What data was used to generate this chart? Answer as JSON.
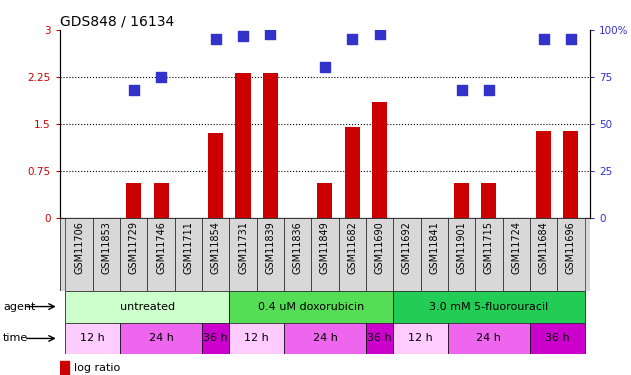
{
  "title": "GDS848 / 16134",
  "samples": [
    "GSM11706",
    "GSM11853",
    "GSM11729",
    "GSM11746",
    "GSM11711",
    "GSM11854",
    "GSM11731",
    "GSM11839",
    "GSM11836",
    "GSM11849",
    "GSM11682",
    "GSM11690",
    "GSM11692",
    "GSM11841",
    "GSM11901",
    "GSM11715",
    "GSM11724",
    "GSM11684",
    "GSM11696"
  ],
  "log_ratio": [
    0,
    0,
    0.55,
    0.55,
    0,
    1.35,
    2.32,
    2.32,
    0,
    0.55,
    1.45,
    1.85,
    0,
    0,
    0.55,
    0.55,
    0,
    1.38,
    1.38
  ],
  "percentile": [
    null,
    null,
    68,
    75,
    null,
    95,
    97,
    98,
    null,
    80,
    95,
    98,
    null,
    null,
    68,
    68,
    null,
    95,
    95
  ],
  "ylim_left": [
    0,
    3
  ],
  "ylim_right": [
    0,
    100
  ],
  "yticks_left": [
    0,
    0.75,
    1.5,
    2.25,
    3
  ],
  "yticks_right": [
    0,
    25,
    50,
    75,
    100
  ],
  "ytick_labels_left": [
    "0",
    "0.75",
    "1.5",
    "2.25",
    "3"
  ],
  "ytick_labels_right": [
    "0",
    "25",
    "50",
    "75",
    "100%"
  ],
  "hlines": [
    0.75,
    1.5,
    2.25
  ],
  "bar_color": "#cc0000",
  "dot_color": "#3333cc",
  "agent_configs": [
    [
      0,
      5,
      "#ccffcc",
      "untreated"
    ],
    [
      6,
      11,
      "#55dd55",
      "0.4 uM doxorubicin"
    ],
    [
      12,
      18,
      "#22cc55",
      "3.0 mM 5-fluorouracil"
    ]
  ],
  "time_configs": [
    [
      0,
      1,
      "#ffccff",
      "12 h"
    ],
    [
      2,
      4,
      "#ee66ee",
      "24 h"
    ],
    [
      5,
      5,
      "#cc00cc",
      "36 h"
    ],
    [
      6,
      7,
      "#ffccff",
      "12 h"
    ],
    [
      8,
      10,
      "#ee66ee",
      "24 h"
    ],
    [
      11,
      11,
      "#cc00cc",
      "36 h"
    ],
    [
      12,
      13,
      "#ffccff",
      "12 h"
    ],
    [
      14,
      16,
      "#ee66ee",
      "24 h"
    ],
    [
      17,
      18,
      "#cc00cc",
      "36 h"
    ]
  ],
  "bar_width": 0.55,
  "dot_size": 55,
  "label_fontsize": 7,
  "tick_fontsize": 7.5,
  "title_fontsize": 10,
  "strip_fontsize": 8
}
